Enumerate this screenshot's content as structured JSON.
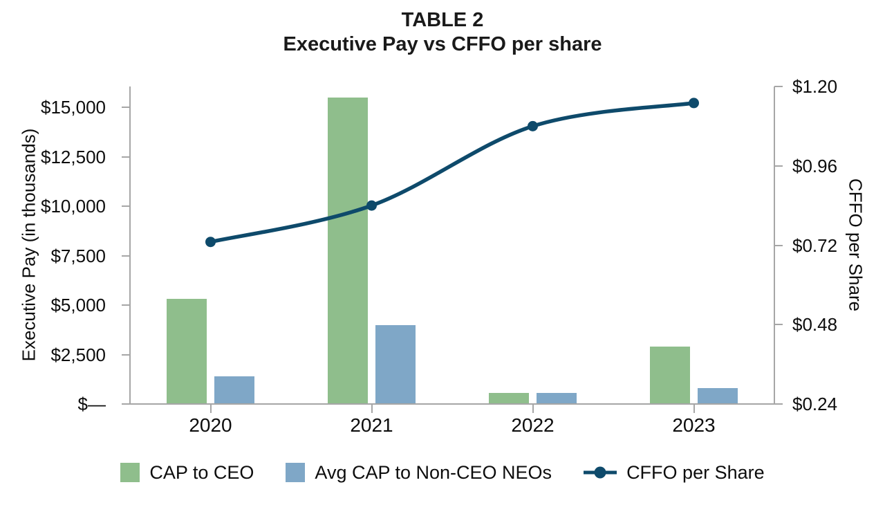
{
  "chart_data": {
    "type": "bar",
    "subtype": "grouped-bar-with-line-overlay",
    "title": "TABLE 2",
    "subtitle": "Executive Pay vs CFFO per share",
    "categories": [
      "2020",
      "2021",
      "2022",
      "2023"
    ],
    "series": [
      {
        "name": "CAP to CEO",
        "type": "bar",
        "axis": "left",
        "color": "#8fbe8c",
        "values": [
          5300,
          15500,
          550,
          2900
        ]
      },
      {
        "name": "Avg CAP to Non-CEO NEOs",
        "type": "bar",
        "axis": "left",
        "color": "#7fa7c7",
        "values": [
          1400,
          4000,
          550,
          800
        ]
      },
      {
        "name": "CFFO per Share",
        "type": "line",
        "axis": "right",
        "color": "#0e4a6b",
        "values": [
          0.73,
          0.84,
          1.08,
          1.15
        ]
      }
    ],
    "left_axis": {
      "label": "Executive Pay (in thousands)",
      "min": 0,
      "max": 15000,
      "tick_interval": 2500,
      "tick_labels": [
        "$—",
        "$2,500",
        "$5,000",
        "$7,500",
        "$10,000",
        "$12,500",
        "$15,000"
      ]
    },
    "right_axis": {
      "label": "CFFO per Share",
      "min": 0.24,
      "max": 1.2,
      "tick_interval": 0.24,
      "tick_labels": [
        "$0.24",
        "$0.48",
        "$0.72",
        "$0.96",
        "$1.20"
      ]
    },
    "legend": {
      "position": "bottom",
      "entries": [
        "CAP to CEO",
        "Avg CAP to Non-CEO NEOs",
        "CFFO per Share"
      ]
    },
    "grid": false,
    "colors": {
      "axis_gray": "#a6a6a6",
      "text": "#0d0d0d",
      "bar_green": "#8fbe8c",
      "bar_blue": "#7fa7c7",
      "line_navy": "#0e4a6b"
    }
  }
}
